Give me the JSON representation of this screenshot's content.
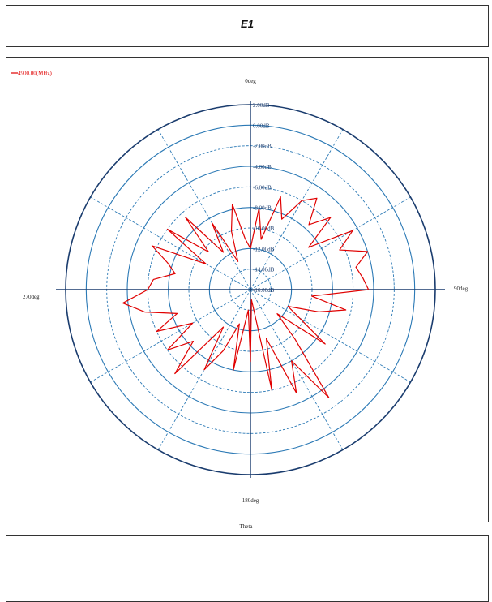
{
  "header": {
    "title": "E1"
  },
  "colors": {
    "trace": "#e00000",
    "axis": "#1a3c6e",
    "ring": "#2b79b5",
    "frame": "#333333"
  },
  "chart_data": {
    "type": "polar-line",
    "xlabel": "Theta",
    "angle_unit": "deg",
    "angle_zero": "top",
    "angle_direction": "clockwise",
    "angle_ticks": [
      "0deg",
      "90deg",
      "180deg",
      "270deg"
    ],
    "radial_labels": [
      "2.00dB",
      "0.00dB",
      "-2.00dB",
      "-4.00dB",
      "-6.00dB",
      "-8.00dB",
      "-10.00dB",
      "-12.00dB",
      "-14.00dB",
      "-16.00dB"
    ],
    "rlim": [
      -16,
      2
    ],
    "grid": true,
    "legend": {
      "position": "top-left"
    },
    "series": [
      {
        "name": "4900.00(MHz)",
        "color": "#e00000",
        "theta": [
          0,
          6,
          12,
          18,
          24,
          30,
          36,
          42,
          48,
          54,
          60,
          66,
          72,
          78,
          84,
          90,
          96,
          102,
          108,
          114,
          120,
          126,
          132,
          138,
          144,
          150,
          156,
          162,
          168,
          174,
          180,
          186,
          192,
          198,
          204,
          210,
          216,
          222,
          228,
          234,
          240,
          246,
          252,
          258,
          264,
          270,
          276,
          282,
          288,
          294,
          300,
          306,
          312,
          318,
          324,
          330,
          336,
          342,
          348,
          354,
          360
        ],
        "r": [
          -12.0,
          -8.0,
          -11.0,
          -6.5,
          -8.5,
          -6.0,
          -5.0,
          -7.5,
          -5.5,
          -9.0,
          -4.5,
          -6.5,
          -4.0,
          -5.5,
          -5.0,
          -4.5,
          -10.0,
          -6.5,
          -9.0,
          -12.0,
          -10.5,
          -7.0,
          -12.5,
          -9.5,
          -3.0,
          -8.0,
          -5.0,
          -11.0,
          -6.0,
          -15.0,
          -9.0,
          -14.0,
          -8.0,
          -12.5,
          -9.5,
          -7.0,
          -11.5,
          -5.0,
          -8.5,
          -6.0,
          -9.5,
          -6.0,
          -8.5,
          -5.5,
          -3.5,
          -6.0,
          -6.5,
          -8.5,
          -7.5,
          -5.5,
          -11.0,
          -6.0,
          -10.5,
          -6.5,
          -11.5,
          -8.5,
          -13.0,
          -10.0,
          -7.5,
          -11.0,
          -12.0
        ]
      }
    ]
  }
}
